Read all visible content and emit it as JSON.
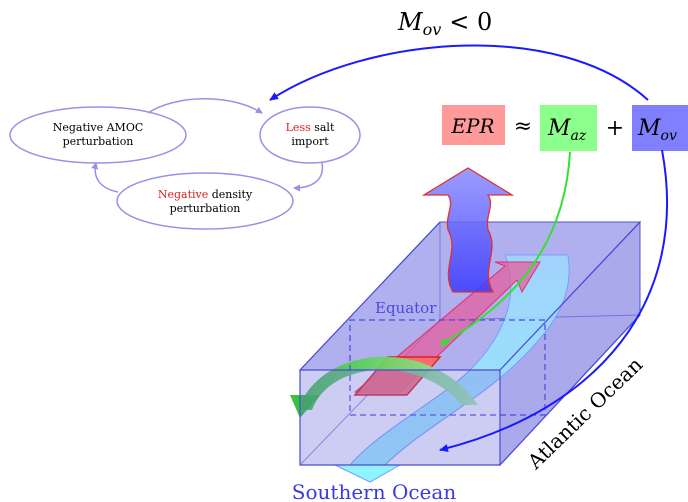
{
  "labels": {
    "m_ov_top": "M",
    "m_ov_top_sub": "ov",
    "m_ov_top_rel": "< 0",
    "epr": "EPR",
    "approx": "≈",
    "m_az": "M",
    "m_az_sub": "az",
    "plus": "+",
    "m_ov": "M",
    "m_ov_sub": "ov",
    "equator": "Equator",
    "atlantic": "Atlantic Ocean",
    "southern": "Southern Ocean"
  },
  "feedback_loop": {
    "node1_line1": "Negative AMOC",
    "node1_line2": "perturbation",
    "node2_red": "Less",
    "node2_rest": " salt",
    "node2_line2": "import",
    "node3_red": "Negative",
    "node3_rest": " density",
    "node3_line2": "perturbation"
  },
  "colors": {
    "epr_box": "#ff9a9a",
    "maz_box": "#8cff8c",
    "mov_box": "#8080ff",
    "loop_stroke": "#9a90e6",
    "highlight_red": "#e02020",
    "ocean_box": "#6f6fe0",
    "blue_arrow": "#1a1aff",
    "green_arrow": "#33e033"
  }
}
